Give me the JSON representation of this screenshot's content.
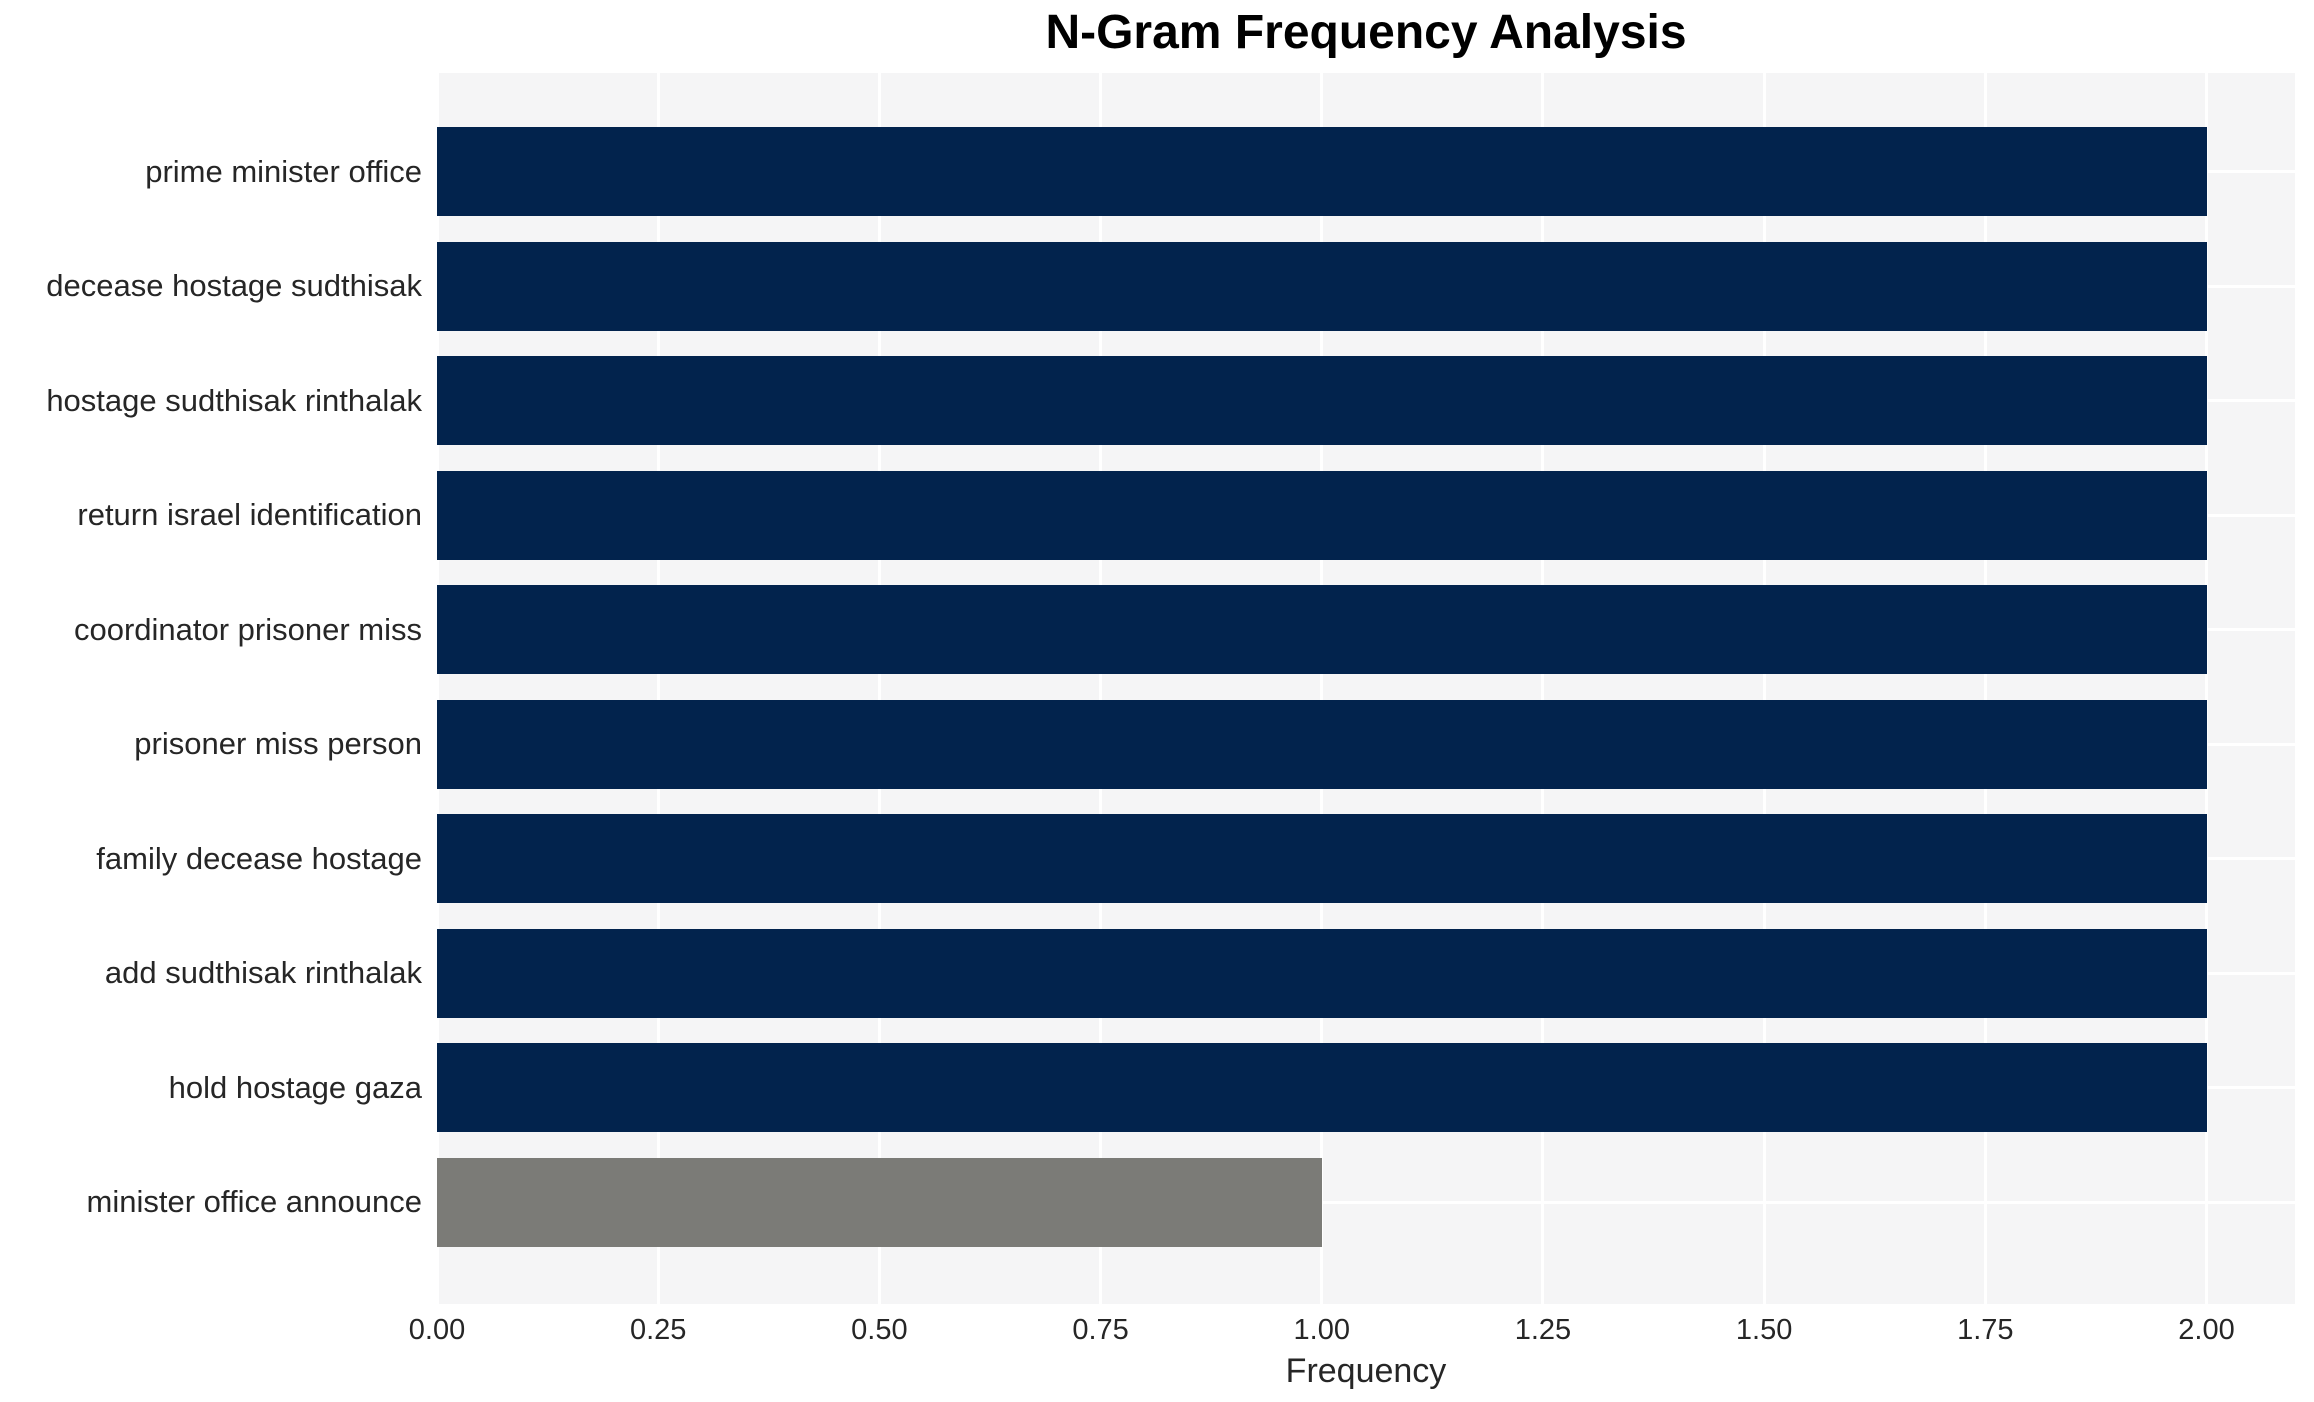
{
  "chart_data": {
    "type": "bar",
    "orientation": "horizontal",
    "title": "N-Gram Frequency Analysis",
    "xlabel": "Frequency",
    "ylabel": "",
    "categories": [
      "prime minister office",
      "decease hostage sudthisak",
      "hostage sudthisak rinthalak",
      "return israel identification",
      "coordinator prisoner miss",
      "prisoner miss person",
      "family decease hostage",
      "add sudthisak rinthalak",
      "hold hostage gaza",
      "minister office announce"
    ],
    "values": [
      2,
      2,
      2,
      2,
      2,
      2,
      2,
      2,
      2,
      1
    ],
    "bar_colors": [
      "#02234D",
      "#02234D",
      "#02234D",
      "#02234D",
      "#02234D",
      "#02234D",
      "#02234D",
      "#02234D",
      "#02234D",
      "#7B7B77"
    ],
    "xlim": [
      0,
      2.1
    ],
    "xticks": {
      "values": [
        0,
        0.25,
        0.5,
        0.75,
        1.0,
        1.25,
        1.5,
        1.75,
        2.0
      ],
      "labels": [
        "0.00",
        "0.25",
        "0.50",
        "0.75",
        "1.00",
        "1.25",
        "1.50",
        "1.75",
        "2.00"
      ]
    },
    "grid": "white gridlines on light gray plot background, vertical at each x tick, horizontal at each bar center",
    "legend": null
  },
  "colors": {
    "figure_bg": "#FFFFFF",
    "plot_bg": "#F5F5F6",
    "gridline": "#FFFFFF",
    "bar_primary": "#02234D",
    "bar_secondary": "#7B7B77",
    "tick_text": "#262626",
    "title_text": "#000000"
  }
}
